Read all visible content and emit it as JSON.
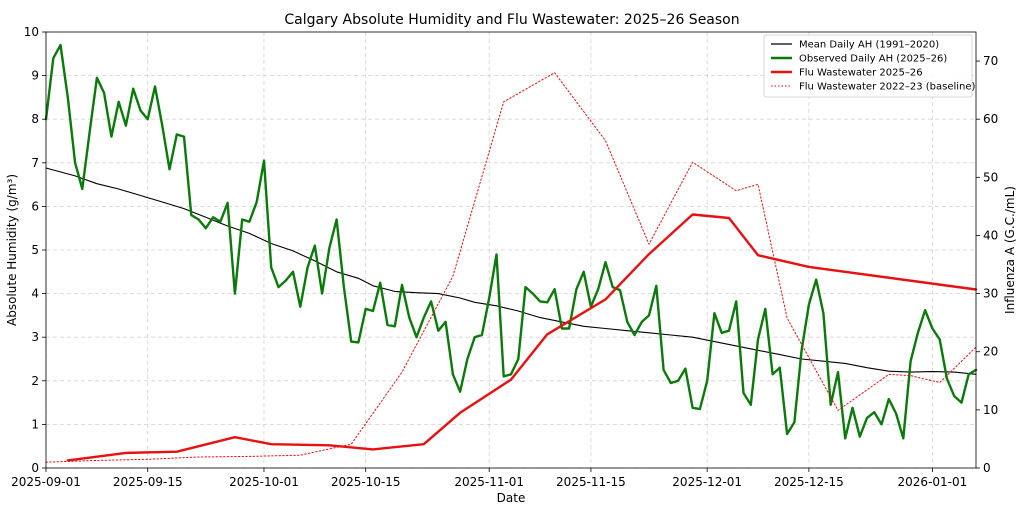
{
  "chart_data": {
    "type": "line",
    "title": "Calgary Absolute Humidity and Flu Wastewater: 2025–26 Season",
    "xlabel": "Date",
    "ylabel_left": "Absolute Humidity (g/m³)",
    "ylabel_right": "Influenza A (G.C./mL)",
    "xlim": [
      "2025-09-01",
      "2026-01-07"
    ],
    "ylim_left": [
      0,
      10
    ],
    "ylim_right": [
      0,
      75
    ],
    "x_ticks": [
      "2025-09-01",
      "2025-09-15",
      "2025-10-01",
      "2025-10-15",
      "2025-11-01",
      "2025-11-15",
      "2025-12-01",
      "2025-12-15",
      "2026-01-01"
    ],
    "y_ticks_left": [
      0,
      1,
      2,
      3,
      4,
      5,
      6,
      7,
      8,
      9,
      10
    ],
    "y_ticks_right": [
      0,
      10,
      20,
      30,
      40,
      50,
      60,
      70
    ],
    "grid": true,
    "legend_position": "top-right",
    "series": [
      {
        "name": "Mean Daily AH (1991–2020)",
        "axis": "left",
        "color": "#000000",
        "style": "solid-thin",
        "points": [
          [
            "2025-09-01",
            6.88
          ],
          [
            "2025-09-05",
            6.7
          ],
          [
            "2025-09-08",
            6.52
          ],
          [
            "2025-09-11",
            6.4
          ],
          [
            "2025-09-14",
            6.25
          ],
          [
            "2025-09-17",
            6.1
          ],
          [
            "2025-09-20",
            5.95
          ],
          [
            "2025-09-23",
            5.75
          ],
          [
            "2025-09-26",
            5.55
          ],
          [
            "2025-09-29",
            5.38
          ],
          [
            "2025-10-02",
            5.15
          ],
          [
            "2025-10-05",
            4.98
          ],
          [
            "2025-10-08",
            4.75
          ],
          [
            "2025-10-11",
            4.5
          ],
          [
            "2025-10-14",
            4.35
          ],
          [
            "2025-10-16",
            4.18
          ],
          [
            "2025-10-19",
            4.05
          ],
          [
            "2025-10-22",
            4.02
          ],
          [
            "2025-10-25",
            4.0
          ],
          [
            "2025-10-28",
            3.9
          ],
          [
            "2025-10-30",
            3.8
          ],
          [
            "2025-11-02",
            3.72
          ],
          [
            "2025-11-05",
            3.6
          ],
          [
            "2025-11-08",
            3.45
          ],
          [
            "2025-11-11",
            3.35
          ],
          [
            "2025-11-14",
            3.25
          ],
          [
            "2025-11-17",
            3.2
          ],
          [
            "2025-11-20",
            3.15
          ],
          [
            "2025-11-23",
            3.1
          ],
          [
            "2025-11-26",
            3.05
          ],
          [
            "2025-11-29",
            3.0
          ],
          [
            "2025-12-02",
            2.9
          ],
          [
            "2025-12-05",
            2.8
          ],
          [
            "2025-12-08",
            2.7
          ],
          [
            "2025-12-11",
            2.6
          ],
          [
            "2025-12-14",
            2.5
          ],
          [
            "2025-12-17",
            2.45
          ],
          [
            "2025-12-20",
            2.4
          ],
          [
            "2025-12-23",
            2.3
          ],
          [
            "2025-12-26",
            2.22
          ],
          [
            "2025-12-29",
            2.2
          ],
          [
            "2026-01-01",
            2.21
          ],
          [
            "2026-01-04",
            2.2
          ],
          [
            "2026-01-07",
            2.15
          ]
        ]
      },
      {
        "name": "Observed Daily AH (2025–26)",
        "axis": "left",
        "color": "#0a7a0a",
        "style": "solid-thick",
        "points": [
          [
            "2025-09-01",
            8.0
          ],
          [
            "2025-09-02",
            9.4
          ],
          [
            "2025-09-03",
            9.7
          ],
          [
            "2025-09-04",
            8.5
          ],
          [
            "2025-09-05",
            7.0
          ],
          [
            "2025-09-06",
            6.4
          ],
          [
            "2025-09-07",
            7.7
          ],
          [
            "2025-09-08",
            8.95
          ],
          [
            "2025-09-09",
            8.6
          ],
          [
            "2025-09-10",
            7.6
          ],
          [
            "2025-09-11",
            8.4
          ],
          [
            "2025-09-12",
            7.85
          ],
          [
            "2025-09-13",
            8.7
          ],
          [
            "2025-09-14",
            8.2
          ],
          [
            "2025-09-15",
            8.0
          ],
          [
            "2025-09-16",
            8.75
          ],
          [
            "2025-09-17",
            7.85
          ],
          [
            "2025-09-18",
            6.85
          ],
          [
            "2025-09-19",
            7.65
          ],
          [
            "2025-09-20",
            7.6
          ],
          [
            "2025-09-21",
            5.8
          ],
          [
            "2025-09-22",
            5.7
          ],
          [
            "2025-09-23",
            5.5
          ],
          [
            "2025-09-24",
            5.75
          ],
          [
            "2025-09-25",
            5.65
          ],
          [
            "2025-09-26",
            6.08
          ],
          [
            "2025-09-27",
            4.0
          ],
          [
            "2025-09-28",
            5.7
          ],
          [
            "2025-09-29",
            5.65
          ],
          [
            "2025-09-30",
            6.1
          ],
          [
            "2025-10-01",
            7.05
          ],
          [
            "2025-10-02",
            4.6
          ],
          [
            "2025-10-03",
            4.15
          ],
          [
            "2025-10-04",
            4.3
          ],
          [
            "2025-10-05",
            4.5
          ],
          [
            "2025-10-06",
            3.7
          ],
          [
            "2025-10-07",
            4.6
          ],
          [
            "2025-10-08",
            5.1
          ],
          [
            "2025-10-09",
            4.0
          ],
          [
            "2025-10-10",
            5.05
          ],
          [
            "2025-10-11",
            5.7
          ],
          [
            "2025-10-12",
            4.15
          ],
          [
            "2025-10-13",
            2.9
          ],
          [
            "2025-10-14",
            2.88
          ],
          [
            "2025-10-15",
            3.65
          ],
          [
            "2025-10-16",
            3.6
          ],
          [
            "2025-10-17",
            4.25
          ],
          [
            "2025-10-18",
            3.28
          ],
          [
            "2025-10-19",
            3.25
          ],
          [
            "2025-10-20",
            4.2
          ],
          [
            "2025-10-21",
            3.45
          ],
          [
            "2025-10-22",
            3.0
          ],
          [
            "2025-10-23",
            3.45
          ],
          [
            "2025-10-24",
            3.82
          ],
          [
            "2025-10-25",
            3.15
          ],
          [
            "2025-10-26",
            3.35
          ],
          [
            "2025-10-27",
            2.15
          ],
          [
            "2025-10-28",
            1.75
          ],
          [
            "2025-10-29",
            2.5
          ],
          [
            "2025-10-30",
            3.0
          ],
          [
            "2025-10-31",
            3.05
          ],
          [
            "2025-11-01",
            3.9
          ],
          [
            "2025-11-02",
            4.9
          ],
          [
            "2025-11-03",
            2.1
          ],
          [
            "2025-11-04",
            2.15
          ],
          [
            "2025-11-05",
            2.5
          ],
          [
            "2025-11-06",
            4.15
          ],
          [
            "2025-11-07",
            4.0
          ],
          [
            "2025-11-08",
            3.82
          ],
          [
            "2025-11-09",
            3.8
          ],
          [
            "2025-11-10",
            4.1
          ],
          [
            "2025-11-11",
            3.2
          ],
          [
            "2025-11-12",
            3.2
          ],
          [
            "2025-11-13",
            4.1
          ],
          [
            "2025-11-14",
            4.5
          ],
          [
            "2025-11-15",
            3.7
          ],
          [
            "2025-11-16",
            4.1
          ],
          [
            "2025-11-17",
            4.72
          ],
          [
            "2025-11-18",
            4.15
          ],
          [
            "2025-11-19",
            4.08
          ],
          [
            "2025-11-20",
            3.35
          ],
          [
            "2025-11-21",
            3.05
          ],
          [
            "2025-11-22",
            3.35
          ],
          [
            "2025-11-23",
            3.5
          ],
          [
            "2025-11-24",
            4.18
          ],
          [
            "2025-11-25",
            2.25
          ],
          [
            "2025-11-26",
            1.95
          ],
          [
            "2025-11-27",
            2.0
          ],
          [
            "2025-11-28",
            2.28
          ],
          [
            "2025-11-29",
            1.38
          ],
          [
            "2025-11-30",
            1.35
          ],
          [
            "2025-12-01",
            2.0
          ],
          [
            "2025-12-02",
            3.55
          ],
          [
            "2025-12-03",
            3.1
          ],
          [
            "2025-12-04",
            3.15
          ],
          [
            "2025-12-05",
            3.82
          ],
          [
            "2025-12-06",
            1.72
          ],
          [
            "2025-12-07",
            1.45
          ],
          [
            "2025-12-08",
            2.95
          ],
          [
            "2025-12-09",
            3.65
          ],
          [
            "2025-12-10",
            2.15
          ],
          [
            "2025-12-11",
            2.3
          ],
          [
            "2025-12-12",
            0.78
          ],
          [
            "2025-12-13",
            1.05
          ],
          [
            "2025-12-14",
            2.7
          ],
          [
            "2025-12-15",
            3.75
          ],
          [
            "2025-12-16",
            4.32
          ],
          [
            "2025-12-17",
            3.55
          ],
          [
            "2025-12-18",
            1.45
          ],
          [
            "2025-12-19",
            2.2
          ],
          [
            "2025-12-20",
            0.68
          ],
          [
            "2025-12-21",
            1.38
          ],
          [
            "2025-12-22",
            0.72
          ],
          [
            "2025-12-23",
            1.15
          ],
          [
            "2025-12-24",
            1.28
          ],
          [
            "2025-12-25",
            1.0
          ],
          [
            "2025-12-26",
            1.58
          ],
          [
            "2025-12-27",
            1.25
          ],
          [
            "2025-12-28",
            0.68
          ],
          [
            "2025-12-29",
            2.45
          ],
          [
            "2025-12-30",
            3.1
          ],
          [
            "2025-12-31",
            3.62
          ],
          [
            "2026-01-01",
            3.2
          ],
          [
            "2026-01-02",
            2.95
          ],
          [
            "2026-01-03",
            2.05
          ],
          [
            "2026-01-04",
            1.65
          ],
          [
            "2026-01-05",
            1.5
          ],
          [
            "2026-01-06",
            2.15
          ],
          [
            "2026-01-07",
            2.25
          ]
        ]
      },
      {
        "name": "Flu Wastewater 2025–26",
        "axis": "right",
        "color": "#e81010",
        "style": "solid-thick",
        "points": [
          [
            "2025-09-04",
            1.3
          ],
          [
            "2025-09-12",
            2.6
          ],
          [
            "2025-09-19",
            2.8
          ],
          [
            "2025-09-27",
            5.3
          ],
          [
            "2025-10-02",
            4.1
          ],
          [
            "2025-10-10",
            3.9
          ],
          [
            "2025-10-16",
            3.2
          ],
          [
            "2025-10-23",
            4.1
          ],
          [
            "2025-10-28",
            9.5
          ],
          [
            "2025-11-04",
            15.2
          ],
          [
            "2025-11-09",
            23.0
          ],
          [
            "2025-11-17",
            29.0
          ],
          [
            "2025-11-23",
            36.8
          ],
          [
            "2025-11-29",
            43.6
          ],
          [
            "2025-12-04",
            43.0
          ],
          [
            "2025-12-08",
            36.6
          ],
          [
            "2025-12-15",
            34.6
          ],
          [
            "2026-01-07",
            30.7
          ]
        ]
      },
      {
        "name": "Flu Wastewater 2022–23 (baseline)",
        "axis": "right",
        "color": "#e81010",
        "style": "dotted-thin",
        "points": [
          [
            "2025-09-01",
            1.0
          ],
          [
            "2025-09-08",
            1.3
          ],
          [
            "2025-09-15",
            1.5
          ],
          [
            "2025-09-22",
            1.9
          ],
          [
            "2025-09-29",
            2.0
          ],
          [
            "2025-10-06",
            2.2
          ],
          [
            "2025-10-13",
            4.1
          ],
          [
            "2025-10-20",
            16.5
          ],
          [
            "2025-10-27",
            33.0
          ],
          [
            "2025-11-03",
            63.0
          ],
          [
            "2025-11-10",
            68.0
          ],
          [
            "2025-11-17",
            56.3
          ],
          [
            "2025-11-23",
            38.5
          ],
          [
            "2025-11-29",
            52.6
          ],
          [
            "2025-12-05",
            47.7
          ],
          [
            "2025-12-08",
            48.8
          ],
          [
            "2025-12-12",
            25.8
          ],
          [
            "2025-12-19",
            9.9
          ],
          [
            "2025-12-26",
            16.1
          ],
          [
            "2025-12-29",
            15.9
          ],
          [
            "2026-01-02",
            14.7
          ],
          [
            "2026-01-07",
            20.8
          ]
        ]
      }
    ]
  }
}
